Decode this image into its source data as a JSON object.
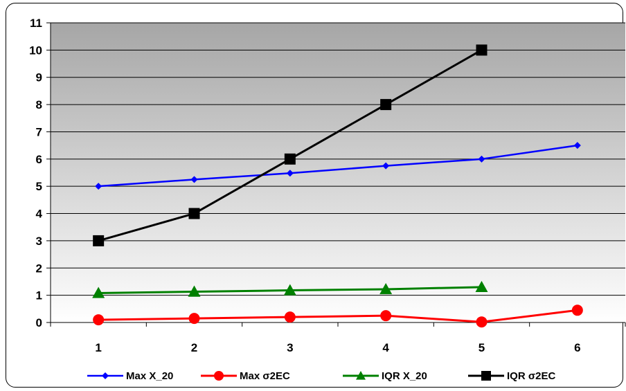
{
  "chart_data": {
    "type": "line",
    "title": "",
    "xlabel": "",
    "ylabel": "",
    "categories": [
      "1",
      "2",
      "3",
      "4",
      "5",
      "6"
    ],
    "ylim": [
      0,
      11
    ],
    "yticks": [
      "0",
      "1",
      "2",
      "3",
      "4",
      "5",
      "6",
      "7",
      "8",
      "9",
      "10",
      "11"
    ],
    "grid": "horizontal",
    "legend_position": "bottom",
    "series": [
      {
        "name": "Max X_20",
        "color": "#0000ff",
        "marker": "diamond",
        "values": [
          5.0,
          5.25,
          5.48,
          5.75,
          6.0,
          6.5
        ]
      },
      {
        "name": "Max σ2EC",
        "color": "#ff0000",
        "marker": "circle",
        "values": [
          0.1,
          0.15,
          0.2,
          0.25,
          0.02,
          0.45
        ]
      },
      {
        "name": "IQR X_20",
        "color": "#008000",
        "marker": "triangle",
        "values": [
          1.08,
          1.13,
          1.18,
          1.22,
          1.3,
          null
        ]
      },
      {
        "name": "IQR σ2EC",
        "color": "#000000",
        "marker": "square",
        "values": [
          3.0,
          4.0,
          6.0,
          8.0,
          10.0,
          null
        ]
      }
    ]
  }
}
